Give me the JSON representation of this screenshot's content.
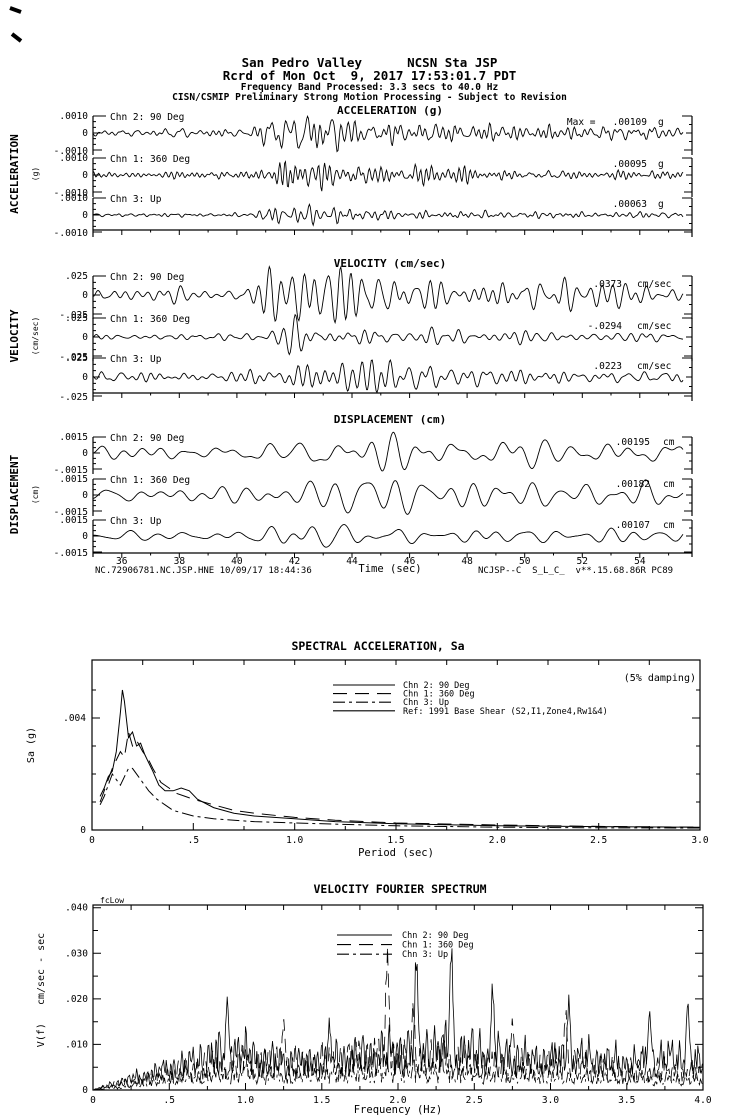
{
  "page": {
    "header": {
      "line1": "San Pedro Valley      NCSN Sta JSP",
      "line2": "Rcrd of Mon Oct  9, 2017 17:53:01.7 PDT",
      "line3": "Frequency Band Processed: 3.3 secs to 40.0 Hz",
      "line4": "CISN/CSMIP Preliminary Strong Motion Processing - Subject to Revision"
    }
  },
  "chart_data": [
    {
      "id": "timeseries",
      "type": "line",
      "xlabel": "Time (sec)",
      "xlim": [
        35,
        55.5
      ],
      "xticks": [
        36,
        38,
        40,
        42,
        44,
        46,
        48,
        50,
        52,
        54
      ],
      "footer_left": "NC.72906781.NC.JSP.HNE 10/09/17 18:44:36",
      "footer_right": "NCJSP--C  S_L_C_  v**.15.68.86R PC89",
      "groups": [
        {
          "title": "ACCELERATION (g)",
          "side_label": "ACCELERATION",
          "side_unit": "(g)",
          "unit": "g",
          "ytick": 0.001,
          "ytick_labels": [
            ".0010",
            "0",
            "-.0010"
          ],
          "envelope": [
            [
              35,
              0.2
            ],
            [
              40.3,
              0.22
            ],
            [
              41,
              0.55
            ],
            [
              41.8,
              1
            ],
            [
              43.5,
              1
            ],
            [
              45,
              0.7
            ],
            [
              47,
              0.45
            ],
            [
              50,
              0.4
            ],
            [
              55.5,
              0.3
            ]
          ],
          "channels": [
            {
              "label": "Chn 2: 90 Deg",
              "peak": 0.00109,
              "peak_label": "Max =   .00109",
              "seed": 101
            },
            {
              "label": "Chn 1: 360 Deg",
              "peak": 0.00095,
              "peak_label": ".00095",
              "seed": 102
            },
            {
              "label": "Chn 3: Up",
              "peak": 0.00063,
              "peak_label": ".00063",
              "seed": 103
            }
          ]
        },
        {
          "title": "VELOCITY (cm/sec)",
          "side_label": "VELOCITY",
          "side_unit": "(cm/sec)",
          "unit": "cm/sec",
          "ytick": 0.025,
          "ytick_labels": [
            ".025",
            "0",
            "-.025"
          ],
          "envelope": [
            [
              35,
              0.25
            ],
            [
              40.3,
              0.3
            ],
            [
              41,
              0.6
            ],
            [
              41.8,
              1
            ],
            [
              44.5,
              1
            ],
            [
              46,
              0.65
            ],
            [
              48,
              0.5
            ],
            [
              52,
              0.45
            ],
            [
              55.5,
              0.35
            ]
          ],
          "channels": [
            {
              "label": "Chn 2: 90 Deg",
              "peak": 0.0373,
              "peak_label": ".0373",
              "seed": 201
            },
            {
              "label": "Chn 1: 360 Deg",
              "peak": 0.0294,
              "peak_label": "-.0294",
              "seed": 202
            },
            {
              "label": "Chn 3: Up",
              "peak": 0.0223,
              "peak_label": ".0223",
              "seed": 203
            }
          ]
        },
        {
          "title": "DISPLACEMENT (cm)",
          "side_label": "DISPLACEMENT",
          "side_unit": "(cm)",
          "unit": "cm",
          "ytick": 0.0015,
          "ytick_labels": [
            ".0015",
            "0",
            "-.0015"
          ],
          "envelope": [
            [
              35,
              0.3
            ],
            [
              40.5,
              0.45
            ],
            [
              41,
              0.8
            ],
            [
              43,
              1
            ],
            [
              45,
              0.9
            ],
            [
              47,
              0.7
            ],
            [
              50,
              0.65
            ],
            [
              55.5,
              0.5
            ]
          ],
          "channels": [
            {
              "label": "Chn 2: 90 Deg",
              "peak": 0.00195,
              "peak_label": ".00195",
              "seed": 301
            },
            {
              "label": "Chn 1: 360 Deg",
              "peak": 0.00182,
              "peak_label": ".00182",
              "seed": 302
            },
            {
              "label": "Chn 3: Up",
              "peak": 0.00107,
              "peak_label": ".00107",
              "seed": 303
            }
          ]
        }
      ]
    },
    {
      "id": "sa",
      "type": "line",
      "title": "SPECTRAL ACCELERATION, Sa",
      "annotation": "(5% damping)",
      "xlabel": "Period (sec)",
      "ylabel": "Sa (g)",
      "xlim": [
        0,
        3.0
      ],
      "ylim": [
        0,
        0.00607
      ],
      "xticks": [
        {
          "v": 0,
          "label": "0"
        },
        {
          "v": 0.5,
          "label": ".5"
        },
        {
          "v": 1.0,
          "label": "1.0"
        },
        {
          "v": 1.5,
          "label": "1.5"
        },
        {
          "v": 2.0,
          "label": "2.0"
        },
        {
          "v": 2.5,
          "label": "2.5"
        },
        {
          "v": 3.0,
          "label": "3.0"
        }
      ],
      "xminor_step": 0.25,
      "yticks": [
        {
          "v": 0,
          "label": "0"
        },
        {
          "v": 0.004,
          "label": ".004"
        }
      ],
      "yminor": [
        0.001,
        0.002,
        0.003,
        0.005
      ],
      "series": [
        {
          "name": "Chn 2: 90 Deg",
          "style": "solid",
          "points": [
            [
              0.04,
              0.0012
            ],
            [
              0.06,
              0.0015
            ],
            [
              0.08,
              0.0019
            ],
            [
              0.1,
              0.0021
            ],
            [
              0.12,
              0.0028
            ],
            [
              0.14,
              0.0042
            ],
            [
              0.15,
              0.005
            ],
            [
              0.16,
              0.0046
            ],
            [
              0.18,
              0.0033
            ],
            [
              0.2,
              0.0035
            ],
            [
              0.22,
              0.003
            ],
            [
              0.24,
              0.0031
            ],
            [
              0.26,
              0.0027
            ],
            [
              0.28,
              0.0024
            ],
            [
              0.3,
              0.0021
            ],
            [
              0.33,
              0.0016
            ],
            [
              0.36,
              0.0014
            ],
            [
              0.4,
              0.0014
            ],
            [
              0.44,
              0.0015
            ],
            [
              0.48,
              0.0014
            ],
            [
              0.52,
              0.0011
            ],
            [
              0.6,
              0.0008
            ],
            [
              0.7,
              0.0006
            ],
            [
              0.8,
              0.0005
            ],
            [
              0.9,
              0.00045
            ],
            [
              1.0,
              0.0004
            ],
            [
              1.2,
              0.0003
            ],
            [
              1.5,
              0.00022
            ],
            [
              2.0,
              0.00015
            ],
            [
              2.5,
              0.00012
            ],
            [
              3.0,
              0.0001
            ]
          ]
        },
        {
          "name": "Chn 1: 360 Deg",
          "style": "longdash",
          "points": [
            [
              0.04,
              0.001
            ],
            [
              0.06,
              0.0014
            ],
            [
              0.08,
              0.0018
            ],
            [
              0.1,
              0.0022
            ],
            [
              0.12,
              0.0025
            ],
            [
              0.14,
              0.0028
            ],
            [
              0.16,
              0.0026
            ],
            [
              0.18,
              0.0035
            ],
            [
              0.2,
              0.003
            ],
            [
              0.22,
              0.0032
            ],
            [
              0.25,
              0.0028
            ],
            [
              0.28,
              0.0025
            ],
            [
              0.3,
              0.0022
            ],
            [
              0.34,
              0.0017
            ],
            [
              0.38,
              0.0015
            ],
            [
              0.42,
              0.0013
            ],
            [
              0.46,
              0.0012
            ],
            [
              0.5,
              0.0011
            ],
            [
              0.6,
              0.0009
            ],
            [
              0.7,
              0.0007
            ],
            [
              0.8,
              0.0006
            ],
            [
              1.0,
              0.00045
            ],
            [
              1.2,
              0.00035
            ],
            [
              1.5,
              0.00025
            ],
            [
              2.0,
              0.00018
            ],
            [
              2.5,
              0.00013
            ],
            [
              3.0,
              0.0001
            ]
          ]
        },
        {
          "name": "Chn 3: Up",
          "style": "dashdot",
          "points": [
            [
              0.04,
              0.0009
            ],
            [
              0.06,
              0.0012
            ],
            [
              0.08,
              0.0016
            ],
            [
              0.1,
              0.002
            ],
            [
              0.12,
              0.0018
            ],
            [
              0.14,
              0.0016
            ],
            [
              0.16,
              0.0019
            ],
            [
              0.18,
              0.0022
            ],
            [
              0.2,
              0.0022
            ],
            [
              0.24,
              0.0018
            ],
            [
              0.28,
              0.0014
            ],
            [
              0.32,
              0.0011
            ],
            [
              0.36,
              0.0009
            ],
            [
              0.4,
              0.0007
            ],
            [
              0.5,
              0.0005
            ],
            [
              0.6,
              0.0004
            ],
            [
              0.8,
              0.0003
            ],
            [
              1.0,
              0.00025
            ],
            [
              1.5,
              0.00015
            ],
            [
              2.0,
              0.0001
            ],
            [
              2.5,
              8e-05
            ],
            [
              3.0,
              7e-05
            ]
          ]
        },
        {
          "name": "Ref: 1991 Base Shear (S2,I1,Zone4,Rw1&4)",
          "style": "solid",
          "off_scale": true,
          "points": [
            [
              0.04,
              0.2
            ],
            [
              3.0,
              0.2
            ]
          ]
        }
      ]
    },
    {
      "id": "fourier",
      "type": "line",
      "title": "VELOCITY FOURIER SPECTRUM",
      "corner_label": "fcLow",
      "xlabel": "Frequency (Hz)",
      "ylabel_main": "V(f)",
      "ylabel_unit": "cm/sec - sec",
      "xlim": [
        0,
        4.0
      ],
      "ylim": [
        0,
        0.0406
      ],
      "xticks": [
        {
          "v": 0,
          "label": "0"
        },
        {
          "v": 0.5,
          "label": ".5"
        },
        {
          "v": 1.0,
          "label": "1.0"
        },
        {
          "v": 1.5,
          "label": "1.5"
        },
        {
          "v": 2.0,
          "label": "2.0"
        },
        {
          "v": 2.5,
          "label": "2.5"
        },
        {
          "v": 3.0,
          "label": "3.0"
        },
        {
          "v": 3.5,
          "label": "3.5"
        },
        {
          "v": 4.0,
          "label": "4.0"
        }
      ],
      "xminor_step": 0.25,
      "yticks": [
        {
          "v": 0,
          "label": "0"
        },
        {
          "v": 0.01,
          "label": ".010"
        },
        {
          "v": 0.02,
          "label": ".020"
        },
        {
          "v": 0.03,
          "label": ".030"
        },
        {
          "v": 0.04,
          "label": ".040"
        }
      ],
      "yminor": [
        0.005,
        0.015,
        0.025,
        0.035
      ],
      "series": [
        {
          "name": "Chn 2: 90 Deg",
          "style": "solid",
          "seed": 41,
          "envelope": [
            [
              0,
              0
            ],
            [
              0.15,
              0.002
            ],
            [
              0.4,
              0.005
            ],
            [
              0.7,
              0.009
            ],
            [
              0.9,
              0.013
            ],
            [
              1.1,
              0.009
            ],
            [
              1.4,
              0.008
            ],
            [
              1.7,
              0.01
            ],
            [
              2.0,
              0.012
            ],
            [
              2.3,
              0.013
            ],
            [
              2.6,
              0.011
            ],
            [
              2.9,
              0.009
            ],
            [
              3.2,
              0.01
            ],
            [
              3.5,
              0.008
            ],
            [
              3.8,
              0.01
            ],
            [
              4.0,
              0.008
            ]
          ],
          "peaks": [
            [
              0.88,
              0.021
            ],
            [
              1.55,
              0.016
            ],
            [
              2.12,
              0.031
            ],
            [
              2.35,
              0.033
            ],
            [
              2.62,
              0.024
            ],
            [
              3.12,
              0.021
            ],
            [
              3.65,
              0.018
            ],
            [
              3.9,
              0.02
            ]
          ]
        },
        {
          "name": "Chn 1: 360 Deg",
          "style": "longdash",
          "seed": 42,
          "envelope": [
            [
              0,
              0
            ],
            [
              0.15,
              0.002
            ],
            [
              0.4,
              0.004
            ],
            [
              0.7,
              0.007
            ],
            [
              1.0,
              0.009
            ],
            [
              1.3,
              0.008
            ],
            [
              1.6,
              0.009
            ],
            [
              1.9,
              0.011
            ],
            [
              2.2,
              0.009
            ],
            [
              2.5,
              0.008
            ],
            [
              2.8,
              0.007
            ],
            [
              3.1,
              0.008
            ],
            [
              3.5,
              0.006
            ],
            [
              4.0,
              0.006
            ]
          ],
          "peaks": [
            [
              1.25,
              0.016
            ],
            [
              1.93,
              0.032
            ],
            [
              2.1,
              0.02
            ],
            [
              2.75,
              0.016
            ],
            [
              3.1,
              0.018
            ]
          ]
        },
        {
          "name": "Chn 3: Up",
          "style": "dashdot",
          "seed": 43,
          "envelope": [
            [
              0,
              0
            ],
            [
              0.2,
              0.001
            ],
            [
              0.5,
              0.003
            ],
            [
              0.9,
              0.005
            ],
            [
              1.3,
              0.004
            ],
            [
              1.7,
              0.005
            ],
            [
              2.1,
              0.006
            ],
            [
              2.5,
              0.005
            ],
            [
              3.0,
              0.004
            ],
            [
              3.5,
              0.0035
            ],
            [
              4.0,
              0.003
            ]
          ],
          "peaks": [
            [
              1.0,
              0.009
            ],
            [
              1.45,
              0.008
            ],
            [
              2.0,
              0.009
            ],
            [
              2.3,
              0.012
            ]
          ]
        }
      ]
    }
  ]
}
